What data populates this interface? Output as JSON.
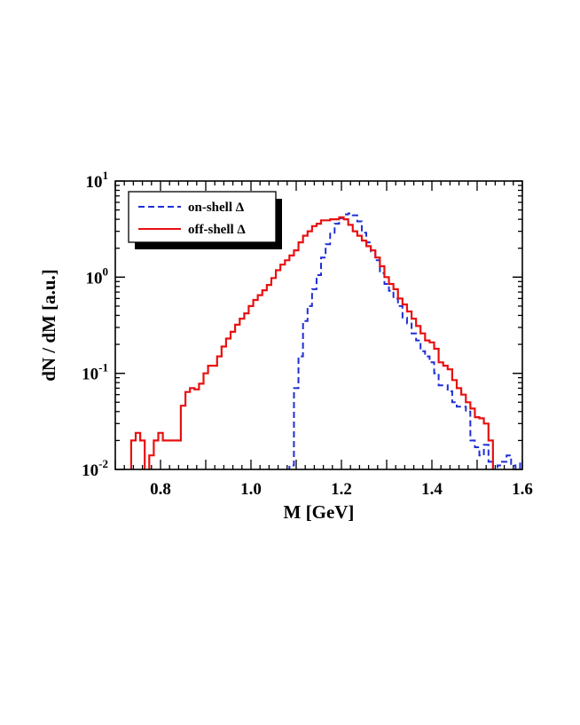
{
  "chart_data": {
    "type": "line",
    "title": "",
    "xlabel": "M [GeV]",
    "ylabel": "dN / dM [a.u.]",
    "xlim": [
      0.7,
      1.6
    ],
    "ylim": [
      0.01,
      10
    ],
    "yscale": "log",
    "grid": false,
    "legend_position": "top-left",
    "x_ticks": [
      {
        "value": 0.8,
        "label": "0.8"
      },
      {
        "value": 1.0,
        "label": "1.0"
      },
      {
        "value": 1.2,
        "label": "1.2"
      },
      {
        "value": 1.4,
        "label": "1.4"
      },
      {
        "value": 1.6,
        "label": "1.6"
      }
    ],
    "y_ticks": [
      {
        "value": 0.01,
        "base": "10",
        "exp": "-2"
      },
      {
        "value": 0.1,
        "base": "10",
        "exp": "-1"
      },
      {
        "value": 1,
        "base": "10",
        "exp": "0"
      },
      {
        "value": 10,
        "base": "10",
        "exp": "1"
      }
    ],
    "series": [
      {
        "name": "on-shell Δ",
        "color": "#1f2fd6",
        "style": "dashed",
        "x": [
          1.08,
          1.09,
          1.1,
          1.11,
          1.12,
          1.13,
          1.14,
          1.15,
          1.16,
          1.17,
          1.18,
          1.19,
          1.2,
          1.21,
          1.22,
          1.23,
          1.24,
          1.25,
          1.26,
          1.27,
          1.28,
          1.29,
          1.3,
          1.31,
          1.32,
          1.33,
          1.34,
          1.35,
          1.36,
          1.37,
          1.38,
          1.39,
          1.4,
          1.41,
          1.42,
          1.43,
          1.44,
          1.45,
          1.46,
          1.47,
          1.48,
          1.49,
          1.5,
          1.51,
          1.52,
          1.53,
          1.54,
          1.55,
          1.56,
          1.57,
          1.58,
          1.59,
          1.6
        ],
        "values": [
          0.008,
          0.011,
          0.07,
          0.15,
          0.35,
          0.5,
          0.75,
          1.05,
          1.6,
          2.2,
          2.9,
          3.6,
          4.1,
          4.5,
          4.6,
          4.4,
          3.8,
          2.9,
          2.3,
          1.85,
          1.5,
          1.1,
          0.85,
          0.72,
          0.6,
          0.5,
          0.38,
          0.33,
          0.26,
          0.22,
          0.17,
          0.15,
          0.13,
          0.1,
          0.075,
          0.075,
          0.065,
          0.05,
          0.045,
          0.045,
          0.04,
          0.02,
          0.017,
          0.014,
          0.018,
          0.012,
          0.009,
          0.011,
          0.012,
          0.014,
          0.011,
          0.009,
          0.012
        ]
      },
      {
        "name": "off-shell Δ",
        "color": "#e81010",
        "style": "solid",
        "x": [
          0.73,
          0.74,
          0.75,
          0.76,
          0.77,
          0.78,
          0.79,
          0.8,
          0.81,
          0.82,
          0.83,
          0.84,
          0.85,
          0.86,
          0.87,
          0.88,
          0.89,
          0.9,
          0.91,
          0.92,
          0.93,
          0.94,
          0.95,
          0.96,
          0.97,
          0.98,
          0.99,
          1.0,
          1.01,
          1.02,
          1.03,
          1.04,
          1.05,
          1.06,
          1.07,
          1.08,
          1.09,
          1.1,
          1.11,
          1.12,
          1.13,
          1.14,
          1.15,
          1.16,
          1.17,
          1.18,
          1.19,
          1.2,
          1.21,
          1.22,
          1.23,
          1.24,
          1.25,
          1.26,
          1.27,
          1.28,
          1.29,
          1.3,
          1.31,
          1.32,
          1.33,
          1.34,
          1.35,
          1.36,
          1.37,
          1.38,
          1.39,
          1.4,
          1.41,
          1.42,
          1.43,
          1.44,
          1.45,
          1.46,
          1.47,
          1.48,
          1.49,
          1.5,
          1.51,
          1.52,
          1.53,
          1.54
        ],
        "values": [
          0.008,
          0.02,
          0.024,
          0.02,
          0.008,
          0.014,
          0.02,
          0.024,
          0.02,
          0.02,
          0.02,
          0.02,
          0.046,
          0.064,
          0.07,
          0.068,
          0.078,
          0.1,
          0.12,
          0.12,
          0.15,
          0.19,
          0.23,
          0.27,
          0.32,
          0.37,
          0.42,
          0.5,
          0.58,
          0.65,
          0.73,
          0.83,
          0.98,
          1.18,
          1.35,
          1.5,
          1.68,
          1.9,
          2.3,
          2.7,
          3.0,
          3.4,
          3.6,
          3.9,
          3.9,
          4.0,
          4.0,
          4.2,
          4.0,
          3.5,
          3.0,
          2.7,
          2.4,
          2.1,
          1.9,
          1.6,
          1.3,
          1.0,
          0.85,
          0.75,
          0.6,
          0.52,
          0.44,
          0.37,
          0.31,
          0.26,
          0.22,
          0.21,
          0.18,
          0.13,
          0.12,
          0.11,
          0.085,
          0.07,
          0.06,
          0.05,
          0.043,
          0.035,
          0.034,
          0.03,
          0.02,
          0.009
        ]
      }
    ]
  }
}
